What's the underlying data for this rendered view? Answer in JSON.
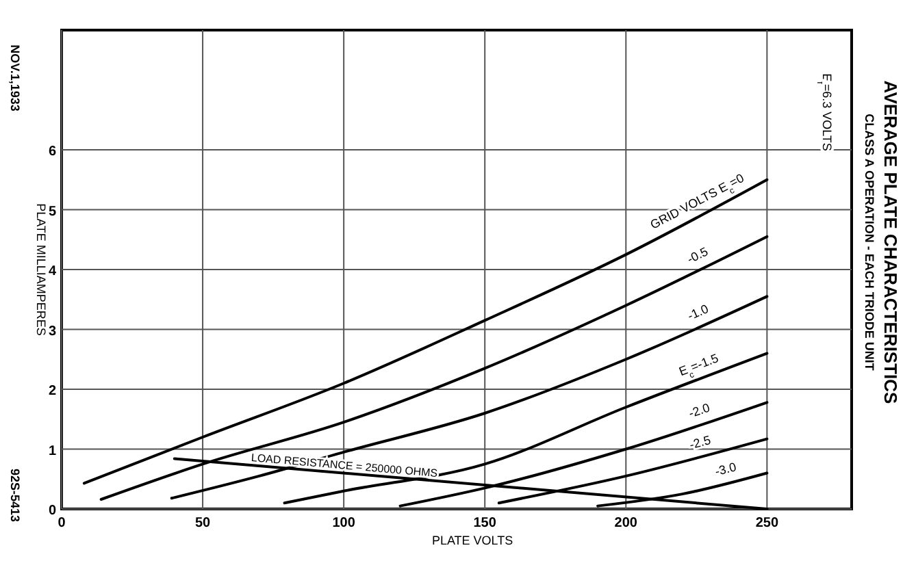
{
  "chart_data": {
    "type": "line",
    "title": "AVERAGE PLATE CHARACTERISTICS",
    "subtitle": "CLASS A OPERATION - EACH TRIODE UNIT",
    "xlabel": "PLATE VOLTS",
    "ylabel": "PLATE MILLIAMPERES",
    "xlim": [
      0,
      280
    ],
    "ylim": [
      0,
      8
    ],
    "xticks": [
      0,
      50,
      100,
      150,
      200,
      250
    ],
    "yticks": [
      0,
      1,
      2,
      3,
      4,
      5,
      6
    ],
    "grid": true,
    "annotations": [
      "E$_{f}$=6.3 VOLTS",
      "NOV.1,1933",
      "92S-5413",
      {
        "text": "LOAD RESISTANCE = 250000 OHMS",
        "x": 100,
        "y": 0.6
      }
    ],
    "series": [
      {
        "name": "GRID VOLTS E$_{c}$=0",
        "color": "#000000",
        "x": [
          8,
          50,
          100,
          150,
          200,
          250
        ],
        "values": [
          0.43,
          1.2,
          2.1,
          3.15,
          4.25,
          5.5
        ]
      },
      {
        "name": "-0.5",
        "color": "#000000",
        "x": [
          14,
          50,
          100,
          150,
          200,
          250
        ],
        "values": [
          0.16,
          0.75,
          1.45,
          2.35,
          3.4,
          4.55
        ]
      },
      {
        "name": "-1.0",
        "color": "#000000",
        "x": [
          39,
          70,
          100,
          150,
          200,
          250
        ],
        "values": [
          0.18,
          0.55,
          0.95,
          1.6,
          2.5,
          3.55
        ]
      },
      {
        "name": "E$_{c}$=-1.5",
        "color": "#000000",
        "x": [
          79,
          100,
          150,
          200,
          250
        ],
        "values": [
          0.1,
          0.3,
          0.75,
          1.7,
          2.6
        ]
      },
      {
        "name": "-2.0",
        "color": "#000000",
        "x": [
          120,
          150,
          200,
          250
        ],
        "values": [
          0.05,
          0.35,
          1.0,
          1.78
        ]
      },
      {
        "name": "-2.5",
        "color": "#000000",
        "x": [
          155,
          200,
          250
        ],
        "values": [
          0.1,
          0.55,
          1.17
        ]
      },
      {
        "name": "-3.0",
        "color": "#000000",
        "x": [
          190,
          220,
          250
        ],
        "values": [
          0.05,
          0.25,
          0.6
        ]
      },
      {
        "color": "#000000",
        "x": [
          40,
          250
        ],
        "values": [
          0.84,
          0
        ]
      }
    ]
  }
}
